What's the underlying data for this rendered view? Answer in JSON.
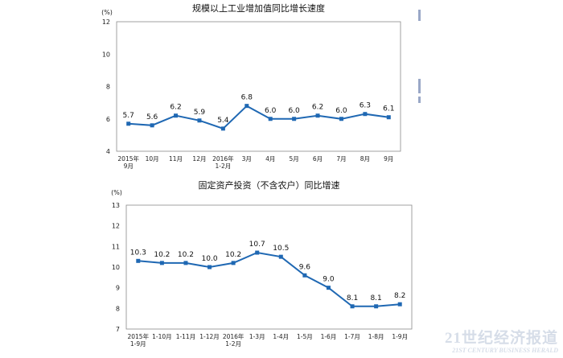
{
  "chart_data": [
    {
      "type": "line",
      "title": "规模以上工业增加值同比增长速度",
      "ylabel": "(%)",
      "ylim": [
        4,
        12
      ],
      "yticks": [
        4,
        6,
        8,
        10,
        12
      ],
      "grid": false,
      "categories": [
        [
          "2015年",
          "9月"
        ],
        [
          "10月"
        ],
        [
          "11月"
        ],
        [
          "12月"
        ],
        [
          "2016年",
          "1-2月"
        ],
        [
          "3月"
        ],
        [
          "4月"
        ],
        [
          "5月"
        ],
        [
          "6月"
        ],
        [
          "7月"
        ],
        [
          "8月"
        ],
        [
          "9月"
        ]
      ],
      "values": [
        5.7,
        5.6,
        6.2,
        5.9,
        5.4,
        6.8,
        6.0,
        6.0,
        6.2,
        6.0,
        6.3,
        6.1
      ],
      "value_labels": [
        "5.7",
        "5.6",
        "6.2",
        "5.9",
        "5.4",
        "6.8",
        "6.0",
        "6.0",
        "6.2",
        "6.0",
        "6.3",
        "6.1"
      ],
      "color": "#1f68b3"
    },
    {
      "type": "line",
      "title": "固定资产投资（不含农户）同比增速",
      "ylabel": "(%)",
      "ylim": [
        7,
        13
      ],
      "yticks": [
        7,
        8,
        9,
        10,
        11,
        12,
        13
      ],
      "grid": false,
      "categories": [
        [
          "2015年",
          "1-9月"
        ],
        [
          "1-10月"
        ],
        [
          "1-11月"
        ],
        [
          "1-12月"
        ],
        [
          "2016年",
          "1-2月"
        ],
        [
          "1-3月"
        ],
        [
          "1-4月"
        ],
        [
          "1-5月"
        ],
        [
          "1-6月"
        ],
        [
          "1-7月"
        ],
        [
          "1-8月"
        ],
        [
          "1-9月"
        ]
      ],
      "values": [
        10.3,
        10.2,
        10.2,
        10.0,
        10.2,
        10.7,
        10.5,
        9.6,
        9.0,
        8.1,
        8.1,
        8.2
      ],
      "value_labels": [
        "10.3",
        "10.2",
        "10.2",
        "10.0",
        "10.2",
        "10.7",
        "10.5",
        "9.6",
        "9.0",
        "8.1",
        "8.1",
        "8.2"
      ],
      "color": "#1f68b3"
    }
  ],
  "watermark": {
    "main": "21世纪经济报道",
    "sub": "21ST CENTURY BUSINESS HERALD"
  }
}
